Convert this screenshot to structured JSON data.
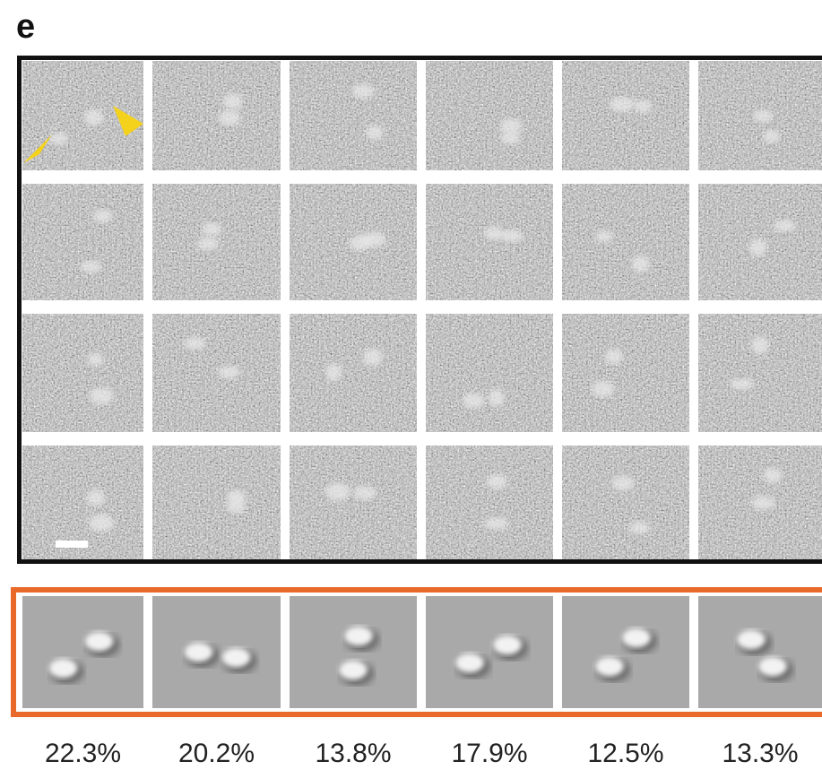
{
  "panel_label": "e",
  "percentages": [
    "22.3%",
    "20.2%",
    "13.8%",
    "17.9%",
    "12.5%",
    "13.3%"
  ]
}
